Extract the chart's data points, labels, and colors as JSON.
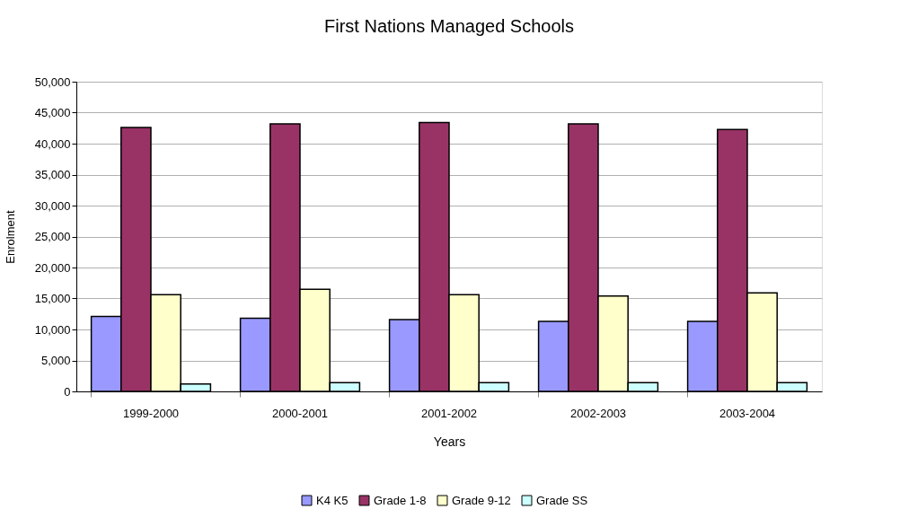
{
  "chart_data": {
    "type": "bar",
    "title": "First Nations Managed Schools",
    "xlabel": "Years",
    "ylabel": "Enrolment",
    "categories": [
      "1999-2000",
      "2000-2001",
      "2001-2002",
      "2002-2003",
      "2003-2004"
    ],
    "series": [
      {
        "name": "K4 K5",
        "color": "#9999ff",
        "values": [
          12100,
          11800,
          11600,
          11300,
          11300
        ]
      },
      {
        "name": "Grade 1-8",
        "color": "#993366",
        "values": [
          42600,
          43200,
          43400,
          43200,
          42300
        ]
      },
      {
        "name": "Grade 9-12",
        "color": "#ffffcc",
        "values": [
          15600,
          16500,
          15600,
          15400,
          15900
        ]
      },
      {
        "name": "Grade SS",
        "color": "#ccffff",
        "values": [
          1200,
          1400,
          1400,
          1400,
          1400
        ]
      }
    ],
    "ylim": [
      0,
      50000
    ],
    "yticks": [
      0,
      {
        "value": 5000,
        "label": "5,000"
      },
      {
        "value": 10000,
        "label": "10,000"
      },
      {
        "value": 15000,
        "label": "15,000"
      },
      {
        "value": 20000,
        "label": "20,000"
      },
      {
        "value": 25000,
        "label": "25,000"
      },
      {
        "value": 30000,
        "label": "30,000"
      },
      {
        "value": 35000,
        "label": "35,000"
      },
      {
        "value": 40000,
        "label": "40,000"
      },
      {
        "value": 45000,
        "label": "45,000"
      },
      {
        "value": 50000,
        "label": "50,000"
      }
    ],
    "grid": "y",
    "legend": "bottom"
  }
}
